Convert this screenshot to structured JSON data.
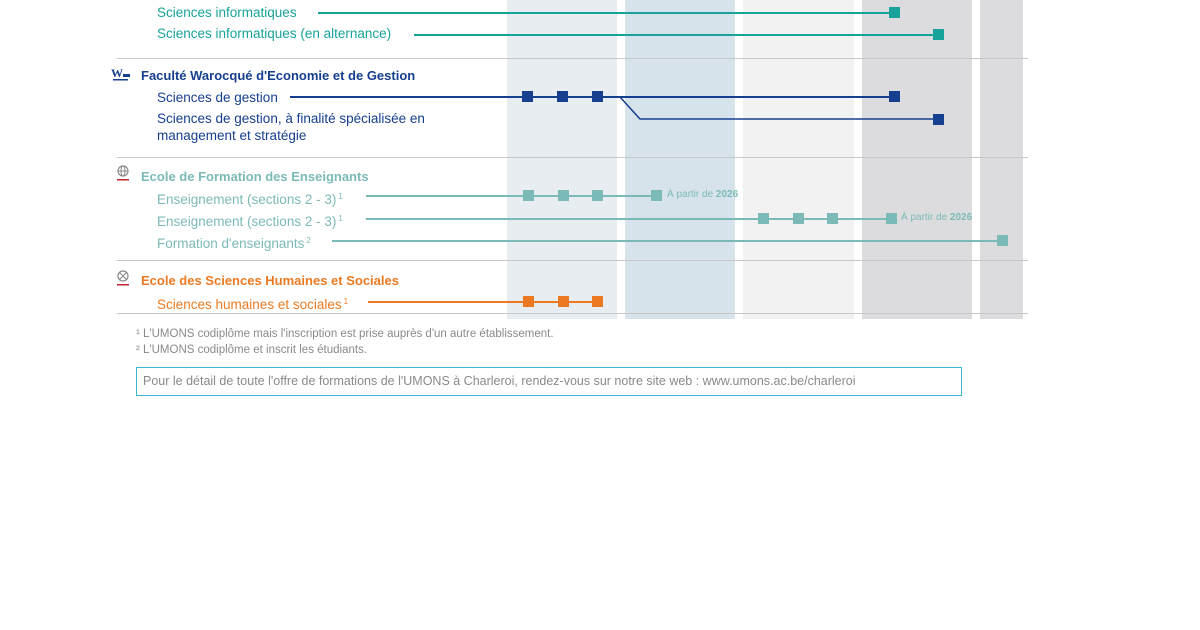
{
  "colors": {
    "teal": "#17a39a",
    "navy": "#163f8f",
    "light_teal": "#7cbab7",
    "orange": "#ec7a22",
    "col_bg_1": "#e8edf2",
    "col_bg_2": "#d7e3ea",
    "col_bg_3": "#f2f2f2",
    "col_bg_4": "#dcdcde"
  },
  "sections": [
    {
      "faculty": "",
      "programmes": [
        {
          "label": "Sciences informatiques",
          "sup": ""
        },
        {
          "label": "Sciences informatiques (en alternance)",
          "sup": ""
        }
      ]
    },
    {
      "faculty": "Faculté Warocqué d'Economie et de Gestion",
      "icon": "warocque-logo-icon",
      "programmes": [
        {
          "label": "Sciences de gestion",
          "sup": ""
        },
        {
          "label": "Sciences de gestion, à finalité spécialisée en",
          "label_line2": "management et stratégie",
          "sup": ""
        }
      ]
    },
    {
      "faculty": "Ecole de Formation des Enseignants",
      "icon": "globe-logo-icon",
      "programmes": [
        {
          "label": "Enseignement (sections 2 - 3)",
          "sup": "1",
          "note_prefix": "À partir de ",
          "note_year": "2026"
        },
        {
          "label": "Enseignement (sections 2 - 3)",
          "sup": "1",
          "note_prefix": "À partir de ",
          "note_year": "2026"
        },
        {
          "label": "Formation d'enseignants",
          "sup": "2"
        }
      ]
    },
    {
      "faculty": "Ecole des Sciences Humaines et Sociales",
      "icon": "compass-logo-icon",
      "programmes": [
        {
          "label": "Sciences humaines et sociales",
          "sup": "1"
        }
      ]
    }
  ],
  "footnotes": [
    "¹ L'UMONS codiplôme mais l'inscription est prise auprès d'un autre établissement.",
    "² L'UMONS codiplôme et inscrit les étudiants."
  ],
  "info_box": "Pour le détail de toute l'offre de formations de l'UMONS à Charleroi, rendez-vous sur notre site web : www.umons.ac.be/charleroi"
}
